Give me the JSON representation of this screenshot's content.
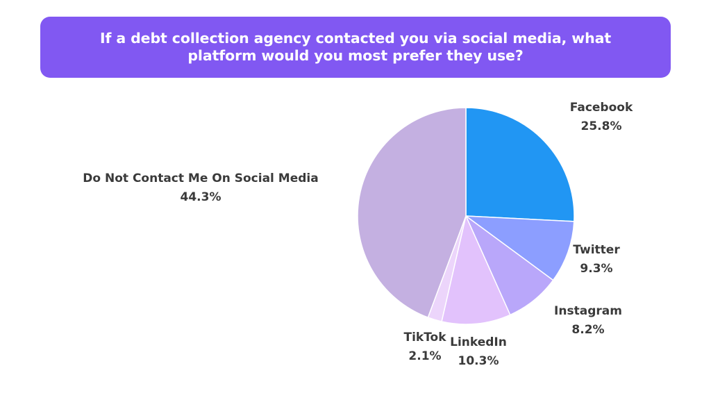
{
  "chart_data": {
    "type": "pie",
    "title": "If a debt collection agency contacted you via social media, what platform would you most prefer they use?",
    "start_angle_deg": 0,
    "direction": "clockwise",
    "slices": [
      {
        "label": "Facebook",
        "value": 25.8,
        "value_label": "25.8%",
        "color": "#2196F3"
      },
      {
        "label": "Twitter",
        "value": 9.3,
        "value_label": "9.3%",
        "color": "#8C9EFF"
      },
      {
        "label": "Instagram",
        "value": 8.2,
        "value_label": "8.2%",
        "color": "#B9A7FA"
      },
      {
        "label": "LinkedIn",
        "value": 10.3,
        "value_label": "10.3%",
        "color": "#E2C2FC"
      },
      {
        "label": "TikTok",
        "value": 2.1,
        "value_label": "2.1%",
        "color": "#ECD5FB"
      },
      {
        "label": "Do Not Contact Me On Social Media",
        "value": 44.3,
        "value_label": "44.3%",
        "color": "#C4B0E1"
      }
    ]
  },
  "colors": {
    "title_background": "#8158F2",
    "title_text": "#FFFFFF",
    "label_text": "#3A3A3A"
  }
}
